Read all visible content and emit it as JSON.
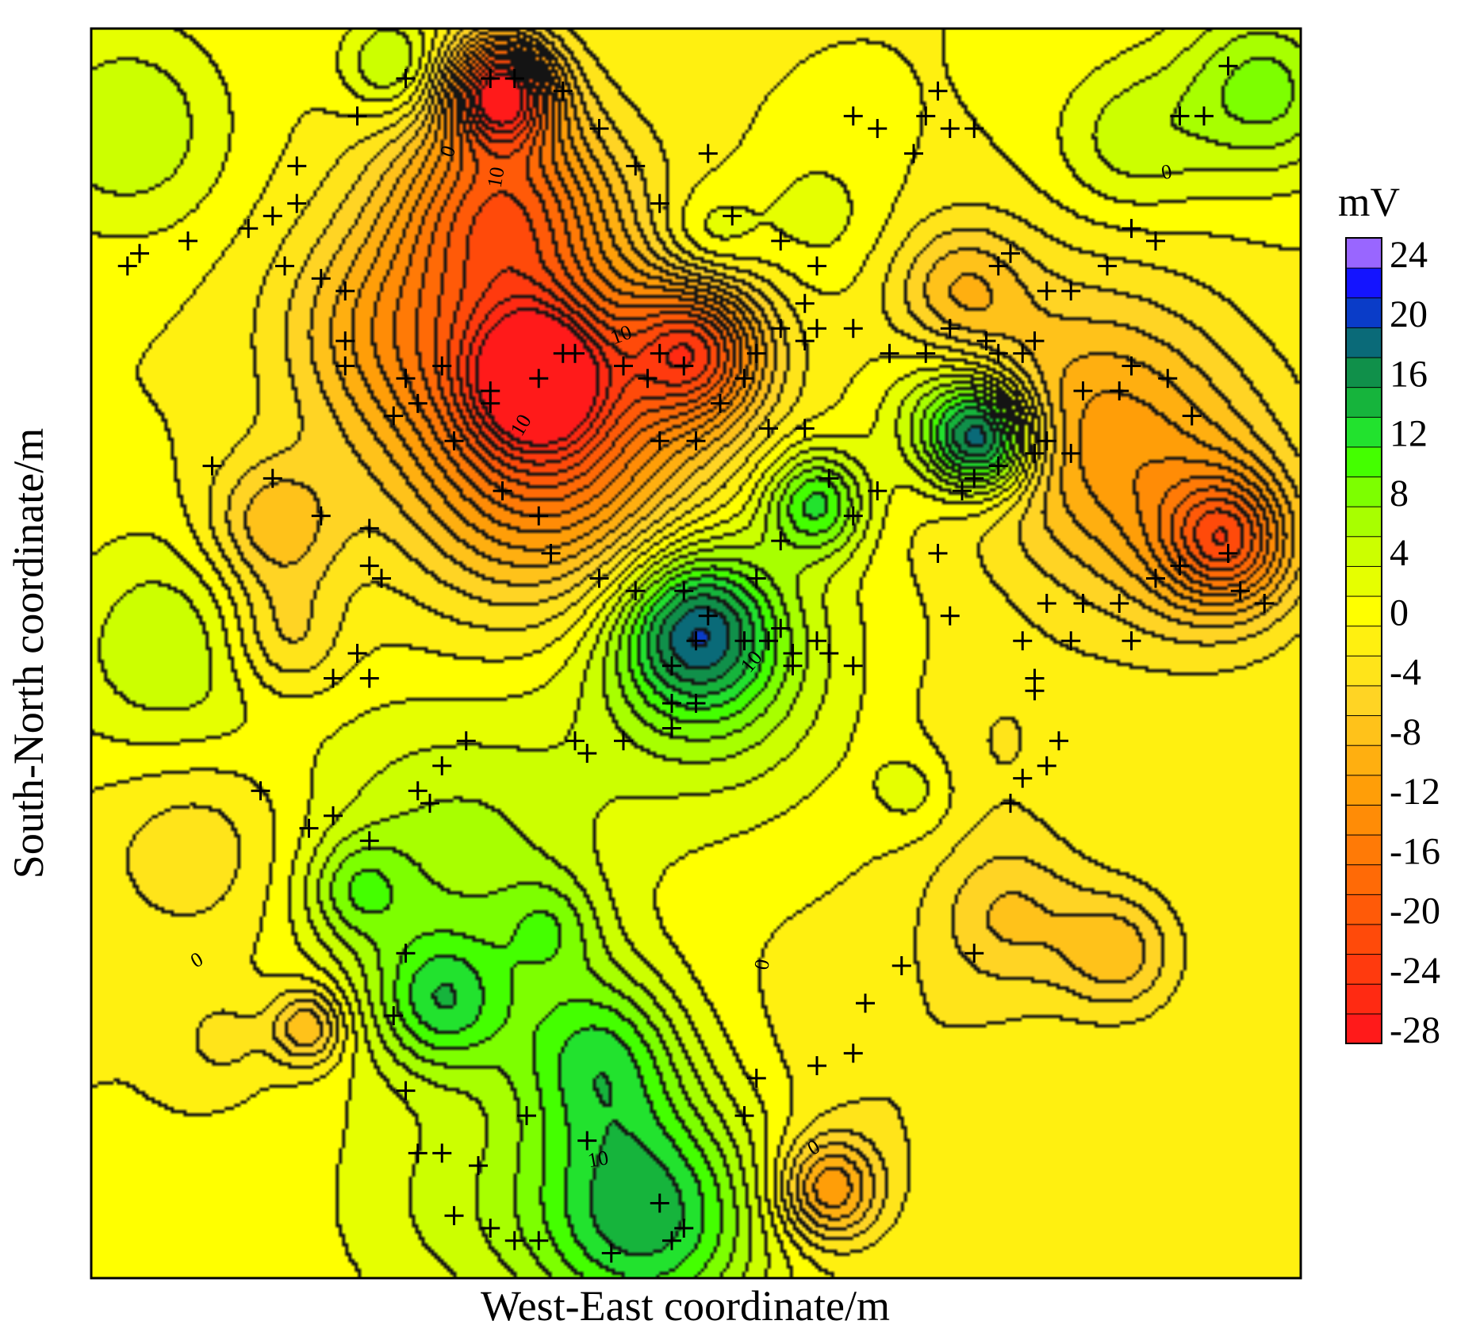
{
  "chart_data": {
    "type": "heatmap",
    "subtype": "filled-contour-map",
    "title": "",
    "xlabel": "West-East coordinate/m",
    "ylabel": "South-North coordinate/m",
    "x_tick_labels": [],
    "y_tick_labels": [],
    "grid": false,
    "colorbar": {
      "unit_label": "mV",
      "placement": "right",
      "levels": [
        -28,
        -26,
        -24,
        -22,
        -20,
        -18,
        -16,
        -14,
        -12,
        -10,
        -8,
        -6,
        -4,
        -2,
        0,
        2,
        4,
        6,
        8,
        10,
        12,
        14,
        16,
        18,
        20,
        22,
        24
      ],
      "tick_labels": [
        "24",
        "20",
        "16",
        "12",
        "8",
        "4",
        "0",
        "-4",
        "-8",
        "-12",
        "-16",
        "-20",
        "-24",
        "-28"
      ],
      "colors": [
        "#ff1a1a",
        "#ff2a12",
        "#ff3a0e",
        "#ff4a0a",
        "#ff5a08",
        "#ff6a06",
        "#ff7a06",
        "#ff8c06",
        "#ff9e08",
        "#ffaf10",
        "#ffc21a",
        "#ffd424",
        "#ffe41a",
        "#fff010",
        "#ffff00",
        "#e6ff00",
        "#ccff00",
        "#a8ff00",
        "#7dff00",
        "#44ff00",
        "#22e22e",
        "#16b43c",
        "#10904a",
        "#0a6a78",
        "#0a3cc8",
        "#1414ff",
        "#9966ff"
      ]
    },
    "contour_labels": [
      "0",
      "0",
      "0",
      "0",
      "0",
      "10",
      "10",
      "10",
      "10",
      "10"
    ],
    "field": {
      "background": 0,
      "anomalies": [
        {
          "x": 0.34,
          "y": 0.95,
          "value": -24,
          "spread": 0.03
        },
        {
          "x": 0.34,
          "y": 0.86,
          "value": -15,
          "spread": 0.06
        },
        {
          "x": 0.36,
          "y": 0.73,
          "value": -12,
          "spread": 0.095
        },
        {
          "x": 0.37,
          "y": 0.72,
          "value": -18,
          "spread": 0.04
        },
        {
          "x": 0.5,
          "y": 0.74,
          "value": -18,
          "spread": 0.04
        },
        {
          "x": 0.39,
          "y": 0.64,
          "value": -10,
          "spread": 0.08
        },
        {
          "x": 0.24,
          "y": 0.76,
          "value": -6,
          "spread": 0.06
        },
        {
          "x": 0.72,
          "y": 0.79,
          "value": -7,
          "spread": 0.04
        },
        {
          "x": 0.82,
          "y": 0.69,
          "value": -8,
          "spread": 0.08
        },
        {
          "x": 0.94,
          "y": 0.59,
          "value": -13,
          "spread": 0.035
        },
        {
          "x": 0.9,
          "y": 0.62,
          "value": -6,
          "spread": 0.08
        },
        {
          "x": 0.15,
          "y": 0.6,
          "value": -8,
          "spread": 0.04
        },
        {
          "x": 0.16,
          "y": 0.51,
          "value": -6,
          "spread": 0.035
        },
        {
          "x": 0.6,
          "y": 0.62,
          "value": 12,
          "spread": 0.03
        },
        {
          "x": 0.74,
          "y": 0.67,
          "value": 18,
          "spread": 0.03
        },
        {
          "x": 0.71,
          "y": 0.69,
          "value": 8,
          "spread": 0.04
        },
        {
          "x": 0.5,
          "y": 0.52,
          "value": 14,
          "spread": 0.045
        },
        {
          "x": 0.51,
          "y": 0.49,
          "value": 8,
          "spread": 0.08
        },
        {
          "x": 0.3,
          "y": 0.33,
          "value": 7,
          "spread": 0.09
        },
        {
          "x": 0.29,
          "y": 0.22,
          "value": 10,
          "spread": 0.04
        },
        {
          "x": 0.42,
          "y": 0.18,
          "value": 10,
          "spread": 0.05
        },
        {
          "x": 0.46,
          "y": 0.05,
          "value": 15,
          "spread": 0.07
        },
        {
          "x": 0.38,
          "y": 0.28,
          "value": 5,
          "spread": 0.03
        },
        {
          "x": 0.22,
          "y": 0.31,
          "value": 6,
          "spread": 0.03
        },
        {
          "x": 0.07,
          "y": 0.5,
          "value": 6,
          "spread": 0.07
        },
        {
          "x": 0.25,
          "y": 0.97,
          "value": 7,
          "spread": 0.03
        },
        {
          "x": 0.03,
          "y": 0.92,
          "value": 6,
          "spread": 0.06
        },
        {
          "x": 0.97,
          "y": 0.95,
          "value": 9,
          "spread": 0.05
        },
        {
          "x": 0.86,
          "y": 0.91,
          "value": 5,
          "spread": 0.045
        },
        {
          "x": 0.51,
          "y": 0.83,
          "value": 5,
          "spread": 0.03
        },
        {
          "x": 0.68,
          "y": 0.39,
          "value": 3,
          "spread": 0.025
        },
        {
          "x": 0.6,
          "y": 0.85,
          "value": 3,
          "spread": 0.04
        },
        {
          "x": 0.09,
          "y": 0.35,
          "value": -4,
          "spread": 0.06
        },
        {
          "x": 0.76,
          "y": 0.29,
          "value": -6,
          "spread": 0.045
        },
        {
          "x": 0.85,
          "y": 0.26,
          "value": -7,
          "spread": 0.035
        },
        {
          "x": 0.61,
          "y": 0.07,
          "value": -12,
          "spread": 0.03
        },
        {
          "x": 0.67,
          "y": 0.16,
          "value": -2,
          "spread": 0.08
        },
        {
          "x": 0.18,
          "y": 0.2,
          "value": -9,
          "spread": 0.022
        },
        {
          "x": 0.93,
          "y": 0.58,
          "value": -3,
          "spread": 0.05
        },
        {
          "x": 0.11,
          "y": 0.19,
          "value": -3,
          "spread": 0.025
        },
        {
          "x": 0.3,
          "y": 0.06,
          "value": 4,
          "spread": 0.08
        },
        {
          "x": 0.75,
          "y": 0.43,
          "value": -2,
          "spread": 0.05
        }
      ]
    },
    "measurement_points": [
      [
        0.03,
        0.81
      ],
      [
        0.04,
        0.82
      ],
      [
        0.08,
        0.83
      ],
      [
        0.13,
        0.84
      ],
      [
        0.16,
        0.81
      ],
      [
        0.19,
        0.8
      ],
      [
        0.17,
        0.86
      ],
      [
        0.15,
        0.85
      ],
      [
        0.21,
        0.79
      ],
      [
        0.17,
        0.89
      ],
      [
        0.22,
        0.93
      ],
      [
        0.26,
        0.96
      ],
      [
        0.33,
        0.96
      ],
      [
        0.35,
        0.96
      ],
      [
        0.39,
        0.95
      ],
      [
        0.42,
        0.92
      ],
      [
        0.45,
        0.89
      ],
      [
        0.47,
        0.86
      ],
      [
        0.51,
        0.9
      ],
      [
        0.53,
        0.85
      ],
      [
        0.57,
        0.83
      ],
      [
        0.6,
        0.81
      ],
      [
        0.59,
        0.78
      ],
      [
        0.6,
        0.76
      ],
      [
        0.54,
        0.72
      ],
      [
        0.52,
        0.7
      ],
      [
        0.49,
        0.73
      ],
      [
        0.47,
        0.74
      ],
      [
        0.46,
        0.72
      ],
      [
        0.44,
        0.73
      ],
      [
        0.4,
        0.74
      ],
      [
        0.39,
        0.74
      ],
      [
        0.37,
        0.72
      ],
      [
        0.33,
        0.71
      ],
      [
        0.29,
        0.73
      ],
      [
        0.26,
        0.72
      ],
      [
        0.25,
        0.69
      ],
      [
        0.27,
        0.7
      ],
      [
        0.21,
        0.73
      ],
      [
        0.21,
        0.75
      ],
      [
        0.33,
        0.7
      ],
      [
        0.3,
        0.67
      ],
      [
        0.34,
        0.63
      ],
      [
        0.37,
        0.61
      ],
      [
        0.38,
        0.58
      ],
      [
        0.42,
        0.56
      ],
      [
        0.45,
        0.55
      ],
      [
        0.49,
        0.55
      ],
      [
        0.51,
        0.53
      ],
      [
        0.54,
        0.51
      ],
      [
        0.56,
        0.51
      ],
      [
        0.57,
        0.52
      ],
      [
        0.6,
        0.51
      ],
      [
        0.61,
        0.5
      ],
      [
        0.48,
        0.46
      ],
      [
        0.5,
        0.46
      ],
      [
        0.48,
        0.44
      ],
      [
        0.44,
        0.43
      ],
      [
        0.41,
        0.42
      ],
      [
        0.4,
        0.43
      ],
      [
        0.48,
        0.49
      ],
      [
        0.5,
        0.51
      ],
      [
        0.63,
        0.49
      ],
      [
        0.57,
        0.59
      ],
      [
        0.63,
        0.61
      ],
      [
        0.65,
        0.63
      ],
      [
        0.72,
        0.63
      ],
      [
        0.73,
        0.64
      ],
      [
        0.75,
        0.65
      ],
      [
        0.78,
        0.66
      ],
      [
        0.79,
        0.67
      ],
      [
        0.81,
        0.66
      ],
      [
        0.82,
        0.71
      ],
      [
        0.85,
        0.71
      ],
      [
        0.86,
        0.73
      ],
      [
        0.89,
        0.72
      ],
      [
        0.91,
        0.69
      ],
      [
        0.94,
        0.58
      ],
      [
        0.95,
        0.55
      ],
      [
        0.97,
        0.54
      ],
      [
        0.68,
        0.9
      ],
      [
        0.71,
        0.92
      ],
      [
        0.73,
        0.92
      ],
      [
        0.65,
        0.92
      ],
      [
        0.69,
        0.93
      ],
      [
        0.63,
        0.93
      ],
      [
        0.7,
        0.95
      ],
      [
        0.84,
        0.81
      ],
      [
        0.86,
        0.84
      ],
      [
        0.88,
        0.83
      ],
      [
        0.9,
        0.93
      ],
      [
        0.92,
        0.93
      ],
      [
        0.94,
        0.97
      ],
      [
        0.75,
        0.81
      ],
      [
        0.76,
        0.82
      ],
      [
        0.81,
        0.79
      ],
      [
        0.79,
        0.79
      ],
      [
        0.78,
        0.75
      ],
      [
        0.77,
        0.74
      ],
      [
        0.75,
        0.74
      ],
      [
        0.74,
        0.75
      ],
      [
        0.71,
        0.76
      ],
      [
        0.69,
        0.74
      ],
      [
        0.66,
        0.74
      ],
      [
        0.63,
        0.76
      ],
      [
        0.59,
        0.75
      ],
      [
        0.57,
        0.76
      ],
      [
        0.55,
        0.74
      ],
      [
        0.47,
        0.67
      ],
      [
        0.5,
        0.67
      ],
      [
        0.56,
        0.68
      ],
      [
        0.59,
        0.68
      ],
      [
        0.61,
        0.64
      ],
      [
        0.58,
        0.5
      ],
      [
        0.55,
        0.56
      ],
      [
        0.58,
        0.49
      ],
      [
        0.1,
        0.65
      ],
      [
        0.15,
        0.64
      ],
      [
        0.19,
        0.61
      ],
      [
        0.23,
        0.6
      ],
      [
        0.23,
        0.57
      ],
      [
        0.24,
        0.56
      ],
      [
        0.22,
        0.5
      ],
      [
        0.2,
        0.48
      ],
      [
        0.23,
        0.48
      ],
      [
        0.31,
        0.43
      ],
      [
        0.29,
        0.41
      ],
      [
        0.28,
        0.38
      ],
      [
        0.27,
        0.39
      ],
      [
        0.23,
        0.35
      ],
      [
        0.2,
        0.37
      ],
      [
        0.18,
        0.36
      ],
      [
        0.14,
        0.39
      ],
      [
        0.26,
        0.26
      ],
      [
        0.25,
        0.21
      ],
      [
        0.26,
        0.15
      ],
      [
        0.29,
        0.1
      ],
      [
        0.36,
        0.13
      ],
      [
        0.41,
        0.11
      ],
      [
        0.47,
        0.06
      ],
      [
        0.49,
        0.04
      ],
      [
        0.48,
        0.03
      ],
      [
        0.43,
        0.02
      ],
      [
        0.37,
        0.03
      ],
      [
        0.35,
        0.03
      ],
      [
        0.33,
        0.04
      ],
      [
        0.32,
        0.09
      ],
      [
        0.3,
        0.05
      ],
      [
        0.27,
        0.1
      ],
      [
        0.54,
        0.13
      ],
      [
        0.55,
        0.16
      ],
      [
        0.6,
        0.17
      ],
      [
        0.63,
        0.18
      ],
      [
        0.64,
        0.22
      ],
      [
        0.67,
        0.25
      ],
      [
        0.73,
        0.26
      ],
      [
        0.76,
        0.38
      ],
      [
        0.77,
        0.4
      ],
      [
        0.79,
        0.41
      ],
      [
        0.8,
        0.43
      ],
      [
        0.78,
        0.47
      ],
      [
        0.77,
        0.51
      ],
      [
        0.79,
        0.54
      ],
      [
        0.82,
        0.54
      ],
      [
        0.85,
        0.54
      ],
      [
        0.88,
        0.56
      ],
      [
        0.9,
        0.57
      ],
      [
        0.7,
        0.58
      ],
      [
        0.71,
        0.53
      ],
      [
        0.86,
        0.51
      ],
      [
        0.81,
        0.51
      ],
      [
        0.78,
        0.48
      ]
    ]
  }
}
